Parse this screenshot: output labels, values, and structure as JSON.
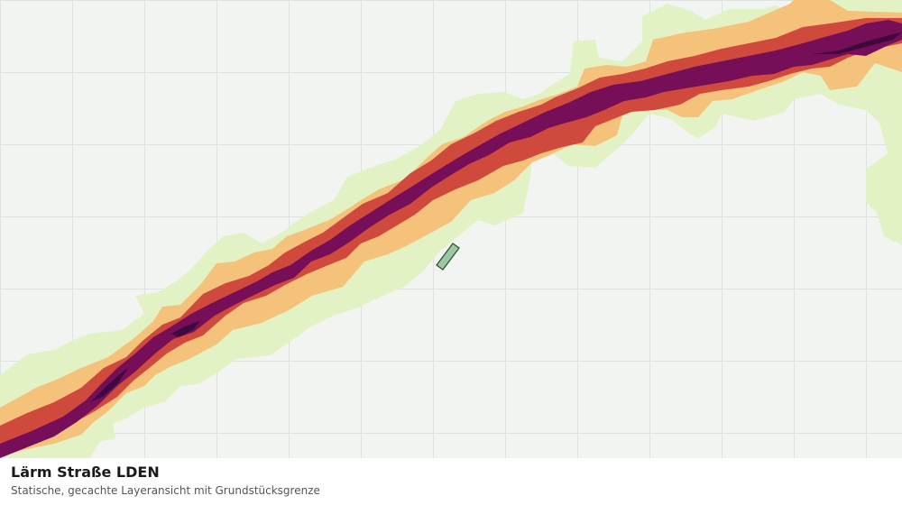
{
  "layer": {
    "title": "Lärm Straße LDEN",
    "subtitle": "Statische, gecachte Layeransicht mit Grundstücksgrenze"
  },
  "map": {
    "background_color": "#f2f4f2",
    "grid_visible": true,
    "grid_color": "#dfe3df",
    "noise_band_colors": [
      "#e2f2c4",
      "#f5c27c",
      "#cf4a3c",
      "#760f58",
      "#3e0a3e"
    ],
    "parcel_fill_color": "#9cc7a0",
    "parcel_stroke_color": "#2b4d2f"
  }
}
